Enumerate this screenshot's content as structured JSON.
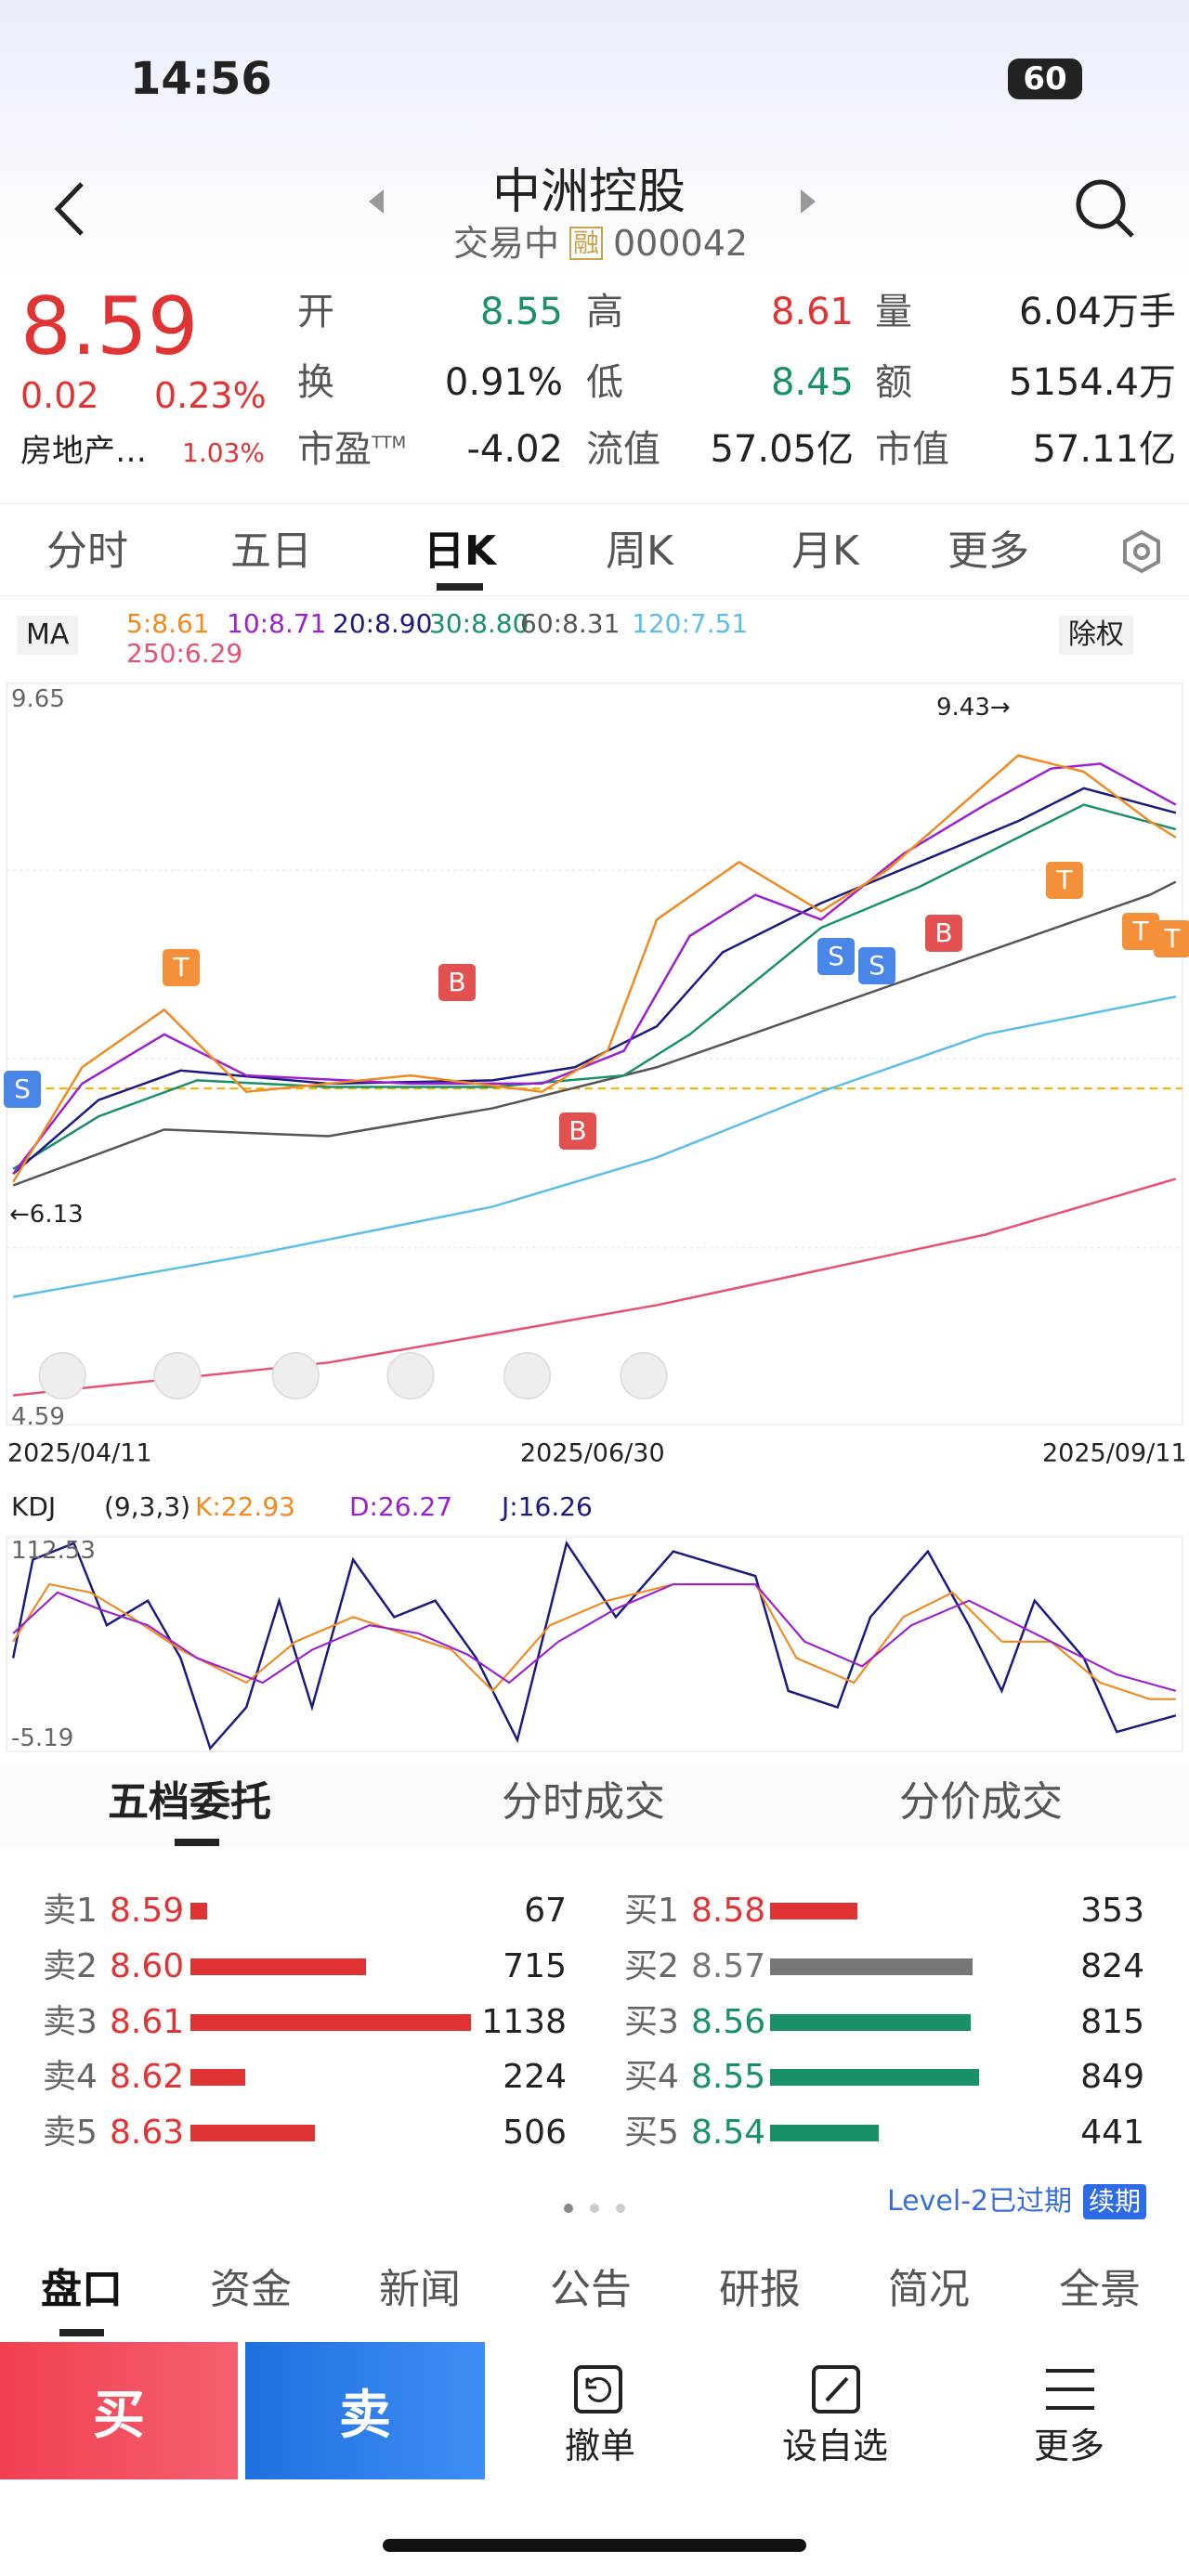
{
  "status": {
    "time": "14:56",
    "battery": "60"
  },
  "header": {
    "title": "中洲控股",
    "status": "交易中",
    "badge": "融",
    "code": "000042"
  },
  "quote": {
    "price": "8.59",
    "change": "0.02",
    "change_pct": "0.23%",
    "sector": "房地产…",
    "sector_pct": "1.03%",
    "stats": [
      {
        "label": "开",
        "value": "8.55"
      },
      {
        "label": "高",
        "value": "8.61"
      },
      {
        "label": "量",
        "value": "6.04万手"
      },
      {
        "label": "换",
        "value": "0.91%"
      },
      {
        "label": "低",
        "value": "8.45"
      },
      {
        "label": "额",
        "value": "5154.4万"
      },
      {
        "label": "市盈",
        "sup": "TTM",
        "value": "-4.02"
      },
      {
        "label": "流值",
        "value": "57.05亿"
      },
      {
        "label": "市值",
        "value": "57.11亿"
      }
    ]
  },
  "tabs": [
    "分时",
    "五日",
    "日K",
    "周K",
    "月K",
    "更多"
  ],
  "kline": {
    "indicator": "MA",
    "ma": [
      "5:8.61",
      "10:8.71",
      "20:8.90",
      "30:8.80",
      "60:8.31",
      "120:7.51",
      "250:6.29"
    ],
    "adjust": "除权",
    "top": "9.65",
    "bottom": "4.59",
    "high_mark": "9.43→",
    "low_mark": "←6.13",
    "dates": [
      "2025/04/11",
      "2025/06/30",
      "2025/09/11"
    ],
    "markers": [
      "S",
      "T",
      "B",
      "B",
      "S",
      "S",
      "B",
      "T",
      "T",
      "T"
    ]
  },
  "kdj": {
    "name": "KDJ",
    "params": "(9,3,3)",
    "k": "K:22.93",
    "d": "D:26.27",
    "j": "J:16.26",
    "top": "112.53",
    "bottom": "-5.19"
  },
  "orderbook": {
    "tabs": [
      "五档委托",
      "分时成交",
      "分价成交"
    ],
    "asks": [
      {
        "label": "卖1",
        "price": "8.59",
        "volume": 67
      },
      {
        "label": "卖2",
        "price": "8.60",
        "volume": 715
      },
      {
        "label": "卖3",
        "price": "8.61",
        "volume": 1138
      },
      {
        "label": "卖4",
        "price": "8.62",
        "volume": 224
      },
      {
        "label": "卖5",
        "price": "8.63",
        "volume": 506
      }
    ],
    "bids": [
      {
        "label": "买1",
        "price": "8.58",
        "volume": 353
      },
      {
        "label": "买2",
        "price": "8.57",
        "volume": 824
      },
      {
        "label": "买3",
        "price": "8.56",
        "volume": 815
      },
      {
        "label": "买4",
        "price": "8.55",
        "volume": 849
      },
      {
        "label": "买5",
        "price": "8.54",
        "volume": 441
      }
    ],
    "level2": "Level-2已过期",
    "renew": "续期"
  },
  "bottom_tabs": [
    "盘口",
    "资金",
    "新闻",
    "公告",
    "研报",
    "简况",
    "全景"
  ],
  "actions": [
    "买",
    "卖",
    "撤单",
    "设自选",
    "更多"
  ]
}
